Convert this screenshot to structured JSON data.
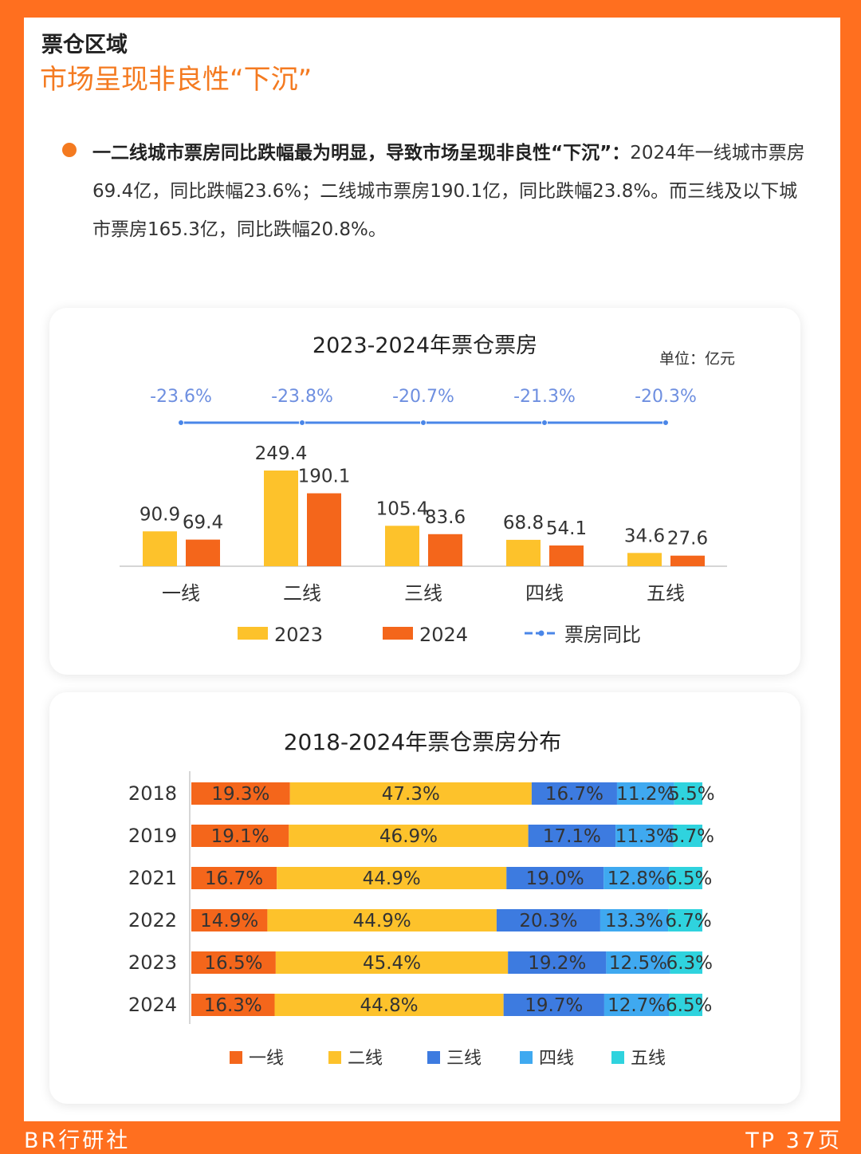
{
  "section": {
    "title": "票仓区域",
    "subtitle": "市场呈现非良性“下沉”"
  },
  "summary": {
    "lead": "一二线城市票房同比跌幅最为明显，导致市场呈现非良性“下沉”：",
    "body": "2024年一线城市票房69.4亿，同比跌幅23.6%；二线城市票房190.1亿，同比跌幅23.8%。而三线及以下城市票房165.3亿，同比跌幅20.8%。"
  },
  "colors": {
    "y2023": "#fdc22b",
    "y2024": "#f4661b",
    "yoy_line": "#4a86e8",
    "tier1": "#f4661b",
    "tier2": "#fdc22b",
    "tier3": "#3d7be0",
    "tier4": "#3fa9f0",
    "tier5": "#2fd3de"
  },
  "chart_data": [
    {
      "type": "bar",
      "title": "2023-2024年票仓票房",
      "unit_label": "单位：亿元",
      "categories": [
        "一线",
        "二线",
        "三线",
        "四线",
        "五线"
      ],
      "series": [
        {
          "name": "2023",
          "values": [
            90.9,
            249.4,
            105.4,
            68.8,
            34.6
          ]
        },
        {
          "name": "2024",
          "values": [
            69.4,
            190.1,
            83.6,
            54.1,
            27.6
          ]
        }
      ],
      "yoy": {
        "name": "票房同比",
        "values": [
          -23.6,
          -23.8,
          -20.7,
          -21.3,
          -20.3
        ],
        "labels": [
          "-23.6%",
          "-23.8%",
          "-20.7%",
          "-21.3%",
          "-20.3%"
        ]
      },
      "legend": [
        "2023",
        "2024",
        "票房同比"
      ],
      "legend_position": "bottom"
    },
    {
      "type": "bar",
      "stacked": true,
      "orientation": "horizontal",
      "title": "2018-2024年票仓票房分布",
      "categories": [
        "2018",
        "2019",
        "2021",
        "2022",
        "2023",
        "2024"
      ],
      "series": [
        {
          "name": "一线",
          "values": [
            19.3,
            19.1,
            16.7,
            14.9,
            16.5,
            16.3
          ],
          "labels": [
            "19.3%",
            "19.1%",
            "16.7%",
            "14.9%",
            "16.5%",
            "16.3%"
          ]
        },
        {
          "name": "二线",
          "values": [
            47.3,
            46.9,
            44.9,
            44.9,
            45.4,
            44.8
          ],
          "labels": [
            "47.3%",
            "46.9%",
            "44.9%",
            "44.9%",
            "45.4%",
            "44.8%"
          ]
        },
        {
          "name": "三线",
          "values": [
            16.7,
            17.1,
            19.0,
            20.3,
            19.2,
            19.7
          ],
          "labels": [
            "16.7%",
            "17.1%",
            "19.0%",
            "20.3%",
            "19.2%",
            "19.7%"
          ]
        },
        {
          "name": "四线",
          "values": [
            11.2,
            11.3,
            12.8,
            13.3,
            12.5,
            12.7
          ],
          "labels": [
            "11.2%",
            "11.3%",
            "12.8%",
            "13.3%",
            "12.5%",
            "12.7%"
          ]
        },
        {
          "name": "五线",
          "values": [
            5.5,
            5.7,
            6.5,
            6.7,
            6.3,
            6.5
          ],
          "labels": [
            "5.5%",
            "5.7%",
            "6.5%",
            "6.7%",
            "6.3%",
            "6.5%"
          ]
        }
      ],
      "legend_position": "bottom"
    }
  ],
  "footer": {
    "left": "BR行研社",
    "right": "TP 37页"
  }
}
